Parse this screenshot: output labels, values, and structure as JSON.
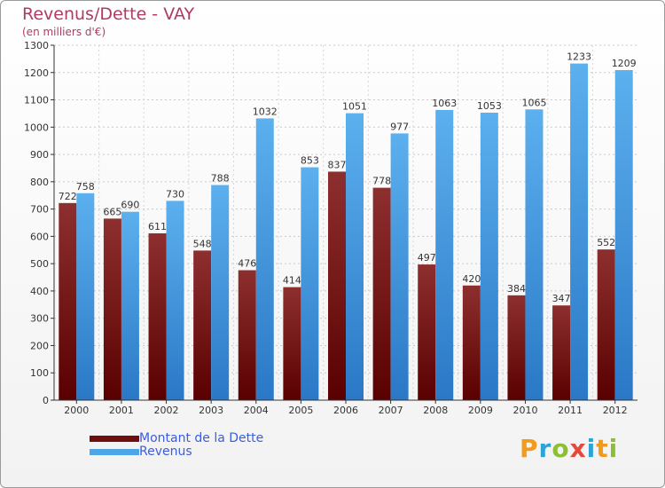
{
  "header": {
    "title": "Revenus/Dette - VAY",
    "subtitle": "(en milliers d'€)"
  },
  "logo": {
    "text": "Proxiti",
    "letters": [
      {
        "ch": "P",
        "color": "#f29a1c"
      },
      {
        "ch": "r",
        "color": "#2fa3d6"
      },
      {
        "ch": "o",
        "color": "#8bbf34"
      },
      {
        "ch": "x",
        "color": "#e34a3c"
      },
      {
        "ch": "i",
        "color": "#2fa3d6"
      },
      {
        "ch": "t",
        "color": "#f29a1c"
      },
      {
        "ch": "i",
        "color": "#8bbf34"
      }
    ]
  },
  "chart_data": {
    "type": "bar",
    "title": "Revenus/Dette - VAY",
    "ylabel": "(en milliers d'€)",
    "xlabel": "",
    "categories": [
      "2000",
      "2001",
      "2002",
      "2003",
      "2004",
      "2005",
      "2006",
      "2007",
      "2008",
      "2009",
      "2010",
      "2011",
      "2012"
    ],
    "series": [
      {
        "name": "Montant de la Dette",
        "color": "#7a1818",
        "values": [
          722,
          665,
          611,
          548,
          476,
          414,
          837,
          778,
          497,
          420,
          384,
          347,
          552
        ]
      },
      {
        "name": "Revenus",
        "color": "#4ea6e6",
        "values": [
          758,
          690,
          730,
          788,
          1032,
          853,
          1051,
          977,
          1063,
          1053,
          1065,
          1233,
          1209
        ]
      }
    ],
    "ylim": [
      0,
      1300
    ],
    "yticks": [
      0,
      100,
      200,
      300,
      400,
      500,
      600,
      700,
      800,
      900,
      1000,
      1100,
      1200,
      1300
    ],
    "grid": true,
    "legend": "bottom-left"
  }
}
